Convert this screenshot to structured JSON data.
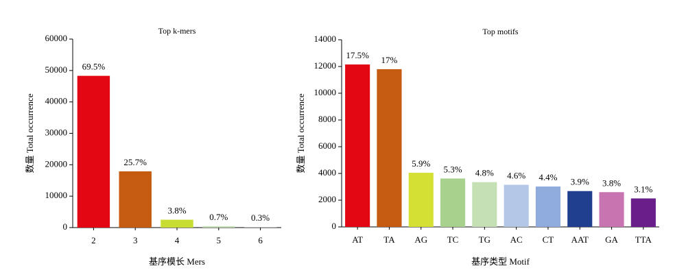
{
  "chart_data": [
    {
      "type": "bar",
      "title": "Top k-mers",
      "x_label": "基序模长 Mers",
      "y_label": "数量 Total occurrence",
      "categories": [
        "2",
        "3",
        "4",
        "5",
        "6"
      ],
      "values": [
        48300,
        17900,
        2500,
        450,
        200
      ],
      "percent_labels": [
        "69.5%",
        "25.7%",
        "3.8%",
        "0.7%",
        "0.3%"
      ],
      "colors": [
        "#e30613",
        "#c55a11",
        "#c8dc32",
        "#c5e0b4",
        "#bfbfbf"
      ],
      "ylim": [
        0,
        60000
      ],
      "yticks": [
        0,
        10000,
        20000,
        30000,
        40000,
        50000,
        60000
      ]
    },
    {
      "type": "bar",
      "title": "Top motifs",
      "x_label": "基序类型 Motif",
      "y_label": "数量 Total occurrence",
      "categories": [
        "AT",
        "TA",
        "AG",
        "TC",
        "TG",
        "AC",
        "CT",
        "AAT",
        "GA",
        "TTA"
      ],
      "values": [
        12150,
        11800,
        4050,
        3620,
        3350,
        3150,
        3020,
        2680,
        2600,
        2130
      ],
      "percent_labels": [
        "17.5%",
        "17%",
        "5.9%",
        "5.3%",
        "4.8%",
        "4.6%",
        "4.4%",
        "3.9%",
        "3.8%",
        "3.1%"
      ],
      "colors": [
        "#e30613",
        "#c55a11",
        "#d4e034",
        "#a9d18e",
        "#c5e0b4",
        "#b4c7e7",
        "#8faadc",
        "#203f8f",
        "#c874b1",
        "#6a1e8a"
      ],
      "ylim": [
        0,
        14000
      ],
      "yticks": [
        0,
        2000,
        4000,
        6000,
        8000,
        10000,
        12000,
        14000
      ]
    }
  ]
}
